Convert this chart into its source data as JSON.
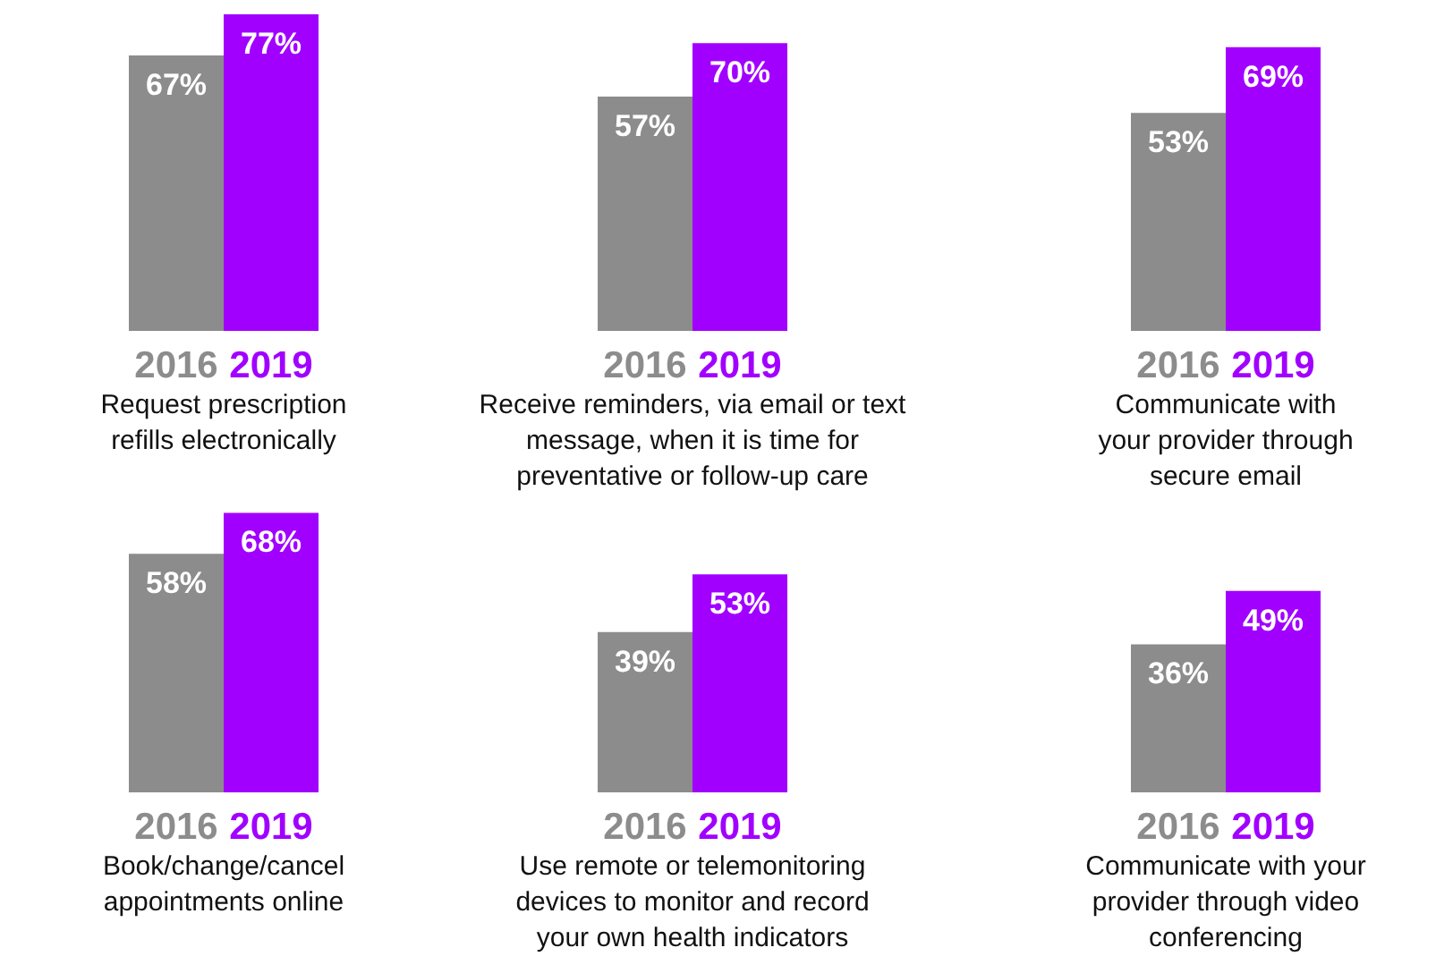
{
  "chart_data": [
    {
      "type": "bar",
      "categories": [
        "2016",
        "2019"
      ],
      "values": [
        67,
        77
      ],
      "colors": [
        "#8c8c8c",
        "#a100ff"
      ],
      "value_labels": [
        "67%",
        "77%"
      ],
      "xlabel": "Request prescription\nrefills electronically"
    },
    {
      "type": "bar",
      "categories": [
        "2016",
        "2019"
      ],
      "values": [
        57,
        70
      ],
      "colors": [
        "#8c8c8c",
        "#a100ff"
      ],
      "value_labels": [
        "57%",
        "70%"
      ],
      "xlabel": "Receive reminders, via email or text\nmessage, when it is time for\npreventative or follow-up care"
    },
    {
      "type": "bar",
      "categories": [
        "2016",
        "2019"
      ],
      "values": [
        53,
        69
      ],
      "colors": [
        "#8c8c8c",
        "#a100ff"
      ],
      "value_labels": [
        "53%",
        "69%"
      ],
      "xlabel": "Communicate with\nyour provider through\nsecure email"
    },
    {
      "type": "bar",
      "categories": [
        "2016",
        "2019"
      ],
      "values": [
        58,
        68
      ],
      "colors": [
        "#8c8c8c",
        "#a100ff"
      ],
      "value_labels": [
        "58%",
        "68%"
      ],
      "xlabel": "Book/change/cancel\nappointments online"
    },
    {
      "type": "bar",
      "categories": [
        "2016",
        "2019"
      ],
      "values": [
        39,
        53
      ],
      "colors": [
        "#8c8c8c",
        "#a100ff"
      ],
      "value_labels": [
        "39%",
        "53%"
      ],
      "xlabel": "Use remote or telemonitoring\ndevices to monitor and record\nyour own health indicators"
    },
    {
      "type": "bar",
      "categories": [
        "2016",
        "2019"
      ],
      "values": [
        36,
        49
      ],
      "colors": [
        "#8c8c8c",
        "#a100ff"
      ],
      "value_labels": [
        "36%",
        "49%"
      ],
      "xlabel": "Communicate with your\nprovider through video\nconferencing"
    }
  ]
}
